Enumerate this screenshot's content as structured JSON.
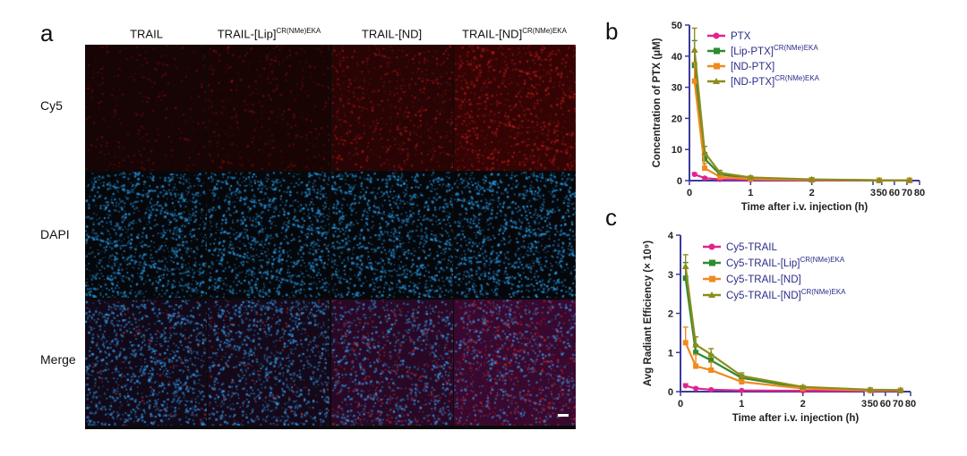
{
  "panel_labels": {
    "a": "a",
    "b": "b",
    "c": "c"
  },
  "microscopy": {
    "columns": [
      {
        "main": "TRAIL",
        "sup": ""
      },
      {
        "main": "TRAIL-[Lip]",
        "sup": "CR(NMe)EKA"
      },
      {
        "main": "TRAIL-[ND]",
        "sup": ""
      },
      {
        "main": "TRAIL-[ND]",
        "sup": "CR(NMe)EKA"
      }
    ],
    "rows": [
      "Cy5",
      "DAPI",
      "Merge"
    ],
    "cy5_intensity": [
      0.12,
      0.18,
      0.55,
      0.85
    ],
    "colors": {
      "dapi": "#1e90d8",
      "cy5": "#b41e1e"
    }
  },
  "chart_data": [
    {
      "type": "line",
      "panel": "b",
      "xlabel": "Time after i.v. injection (h)",
      "ylabel": "Concentration of PTX (μM)",
      "ylim": [
        0,
        50
      ],
      "yticks": [
        "0",
        "10",
        "20",
        "30",
        "40",
        "50"
      ],
      "xticks": [
        "0",
        "1",
        "2",
        "3",
        "50",
        "60",
        "70",
        "80"
      ],
      "x_axis": "broken",
      "series": [
        {
          "name": "PTX",
          "sup": "",
          "color": "#e0238f",
          "marker": "circle",
          "x": [
            0.083,
            0.25,
            0.5,
            1,
            2,
            48,
            72
          ],
          "y": [
            2.0,
            0.8,
            0.4,
            0.2,
            0.1,
            0.05,
            0.05
          ],
          "err": [
            0.5,
            0.3,
            0.2,
            0.1,
            0.05,
            0.02,
            0.02
          ]
        },
        {
          "name": "[Lip-PTX]",
          "sup": "CR(NMe)EKA",
          "color": "#2e8b2e",
          "marker": "square",
          "x": [
            0.083,
            0.25,
            0.5,
            1,
            2,
            48,
            72
          ],
          "y": [
            37,
            7,
            2,
            0.8,
            0.3,
            0.1,
            0.1
          ],
          "err": [
            8,
            2,
            0.6,
            0.3,
            0.1,
            0.05,
            0.05
          ]
        },
        {
          "name": "[ND-PTX]",
          "sup": "",
          "color": "#f0891e",
          "marker": "square",
          "x": [
            0.083,
            0.25,
            0.5,
            1,
            2,
            48,
            72
          ],
          "y": [
            32,
            4,
            1.2,
            0.5,
            0.2,
            0.1,
            0.1
          ],
          "err": [
            6,
            1.5,
            0.5,
            0.2,
            0.1,
            0.05,
            0.05
          ]
        },
        {
          "name": "[ND-PTX]",
          "sup": "CR(NMe)EKA",
          "color": "#8c8c1e",
          "marker": "triangle",
          "x": [
            0.083,
            0.25,
            0.5,
            1,
            2,
            48,
            72
          ],
          "y": [
            42,
            9,
            2.5,
            1.0,
            0.4,
            0.1,
            0.1
          ],
          "err": [
            7,
            2,
            0.8,
            0.3,
            0.1,
            0.05,
            0.05
          ]
        }
      ]
    },
    {
      "type": "line",
      "panel": "c",
      "xlabel": "Time after i.v. injection (h)",
      "ylabel": "Avg Radiant Efficiency (× 10⁹)",
      "ylim": [
        0,
        4
      ],
      "yticks": [
        "0",
        "1",
        "2",
        "3",
        "4"
      ],
      "xticks": [
        "0",
        "1",
        "2",
        "3",
        "50",
        "60",
        "70",
        "80"
      ],
      "x_axis": "broken",
      "series": [
        {
          "name": "Cy5-TRAIL",
          "sup": "",
          "color": "#e0238f",
          "marker": "circle",
          "x": [
            0.083,
            0.25,
            0.5,
            1,
            2,
            48,
            72
          ],
          "y": [
            0.15,
            0.08,
            0.05,
            0.03,
            0.02,
            0.02,
            0.02
          ],
          "err": [
            0.05,
            0.03,
            0.02,
            0.01,
            0.01,
            0.01,
            0.01
          ]
        },
        {
          "name": "Cy5-TRAIL-[Lip]",
          "sup": "CR(NMe)EKA",
          "color": "#2e8b2e",
          "marker": "square",
          "x": [
            0.083,
            0.25,
            0.5,
            1,
            2,
            48,
            72
          ],
          "y": [
            2.9,
            1.0,
            0.8,
            0.35,
            0.1,
            0.04,
            0.03
          ],
          "err": [
            0.4,
            0.2,
            0.15,
            0.08,
            0.03,
            0.01,
            0.01
          ]
        },
        {
          "name": "Cy5-TRAIL-[ND]",
          "sup": "",
          "color": "#f0891e",
          "marker": "square",
          "x": [
            0.083,
            0.25,
            0.5,
            1,
            2,
            48,
            72
          ],
          "y": [
            1.25,
            0.65,
            0.55,
            0.25,
            0.08,
            0.03,
            0.03
          ],
          "err": [
            0.4,
            0.3,
            0.2,
            0.05,
            0.02,
            0.01,
            0.01
          ]
        },
        {
          "name": "Cy5-TRAIL-[ND]",
          "sup": "CR(NMe)EKA",
          "color": "#8c8c1e",
          "marker": "triangle",
          "x": [
            0.083,
            0.25,
            0.5,
            1,
            2,
            48,
            72
          ],
          "y": [
            3.2,
            1.2,
            0.95,
            0.4,
            0.12,
            0.05,
            0.04
          ],
          "err": [
            0.3,
            0.2,
            0.15,
            0.08,
            0.03,
            0.01,
            0.01
          ]
        }
      ]
    }
  ]
}
